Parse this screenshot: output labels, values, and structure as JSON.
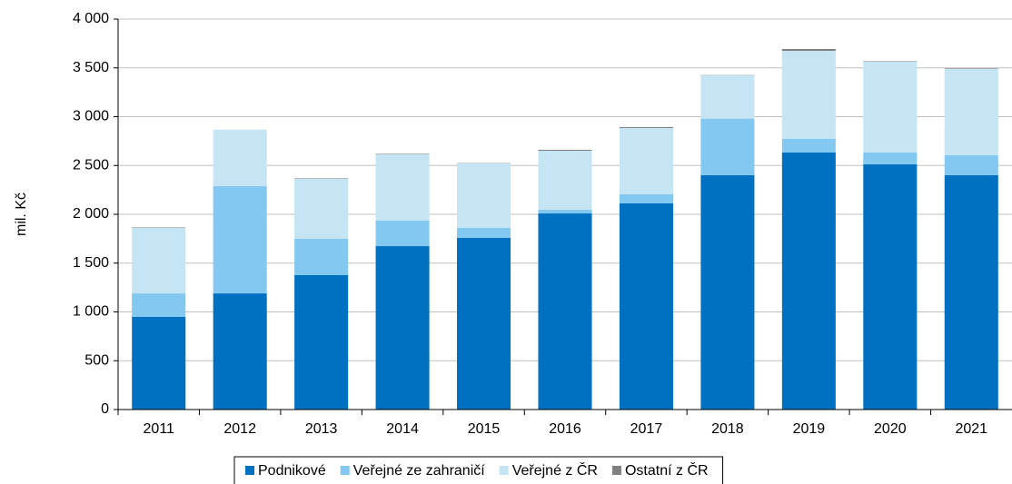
{
  "chart_data": {
    "type": "stacked_bar",
    "y_label": "mil. Kč",
    "categories": [
      "2011",
      "2012",
      "2013",
      "2014",
      "2015",
      "2016",
      "2017",
      "2018",
      "2019",
      "2020",
      "2021"
    ],
    "series": [
      {
        "name": "Podnikové",
        "color": "#0070c0",
        "values": [
          950,
          1190,
          1377,
          1674,
          1758,
          2009,
          2112,
          2400,
          2633,
          2512,
          2400
        ]
      },
      {
        "name": "Veřejné ze zahraničí",
        "color": "#82c8f0",
        "values": [
          240,
          1100,
          372,
          261,
          102,
          38,
          93,
          580,
          139,
          121,
          205
        ]
      },
      {
        "name": "Veřejné z ČR",
        "color": "#c5e5f5",
        "values": [
          670,
          577,
          614,
          679,
          661,
          604,
          679,
          443,
          902,
          930,
          883
        ]
      },
      {
        "name": "Ostatní z ČR",
        "color": "#808080",
        "values": [
          5,
          0,
          5,
          5,
          3,
          10,
          10,
          3,
          19,
          5,
          5
        ]
      }
    ],
    "ylim": [
      0,
      4000
    ],
    "yticks": [
      0,
      500,
      {
        "value": 1000,
        "label": "1 000"
      },
      {
        "value": 1500,
        "label": "1 500"
      },
      {
        "value": 2000,
        "label": "2 000"
      },
      {
        "value": 2500,
        "label": "2 500"
      },
      {
        "value": 3000,
        "label": "3 000"
      },
      {
        "value": 3500,
        "label": "3 500"
      },
      {
        "value": 4000,
        "label": "4 000"
      }
    ],
    "grid": true,
    "legend": "bottom"
  }
}
